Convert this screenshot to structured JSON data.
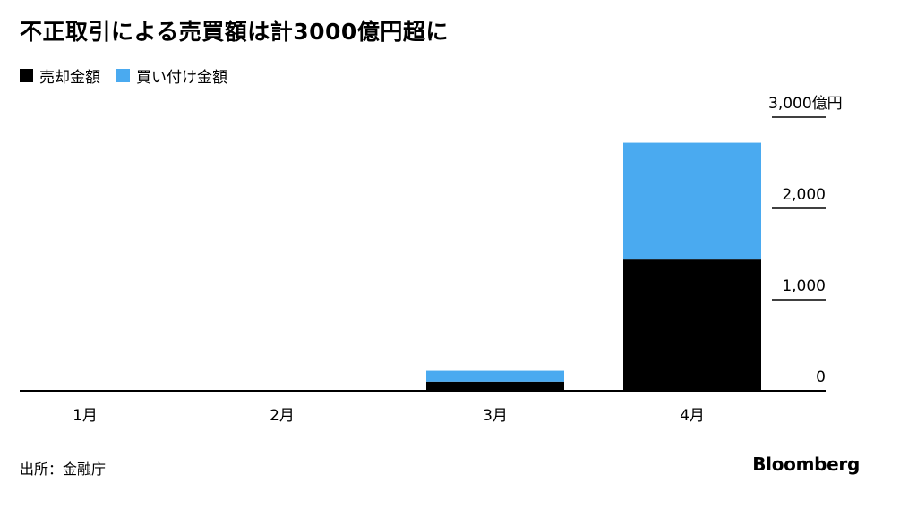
{
  "title": "不正取引による売買額は計3000億円超に",
  "legend": [
    {
      "label": "売却金額",
      "color": "#000000"
    },
    {
      "label": "買い付け金額",
      "color": "#4aaaf0"
    }
  ],
  "source": "出所：金融庁",
  "brand": "Bloomberg",
  "chart_data": {
    "type": "bar",
    "stacked": true,
    "categories": [
      "1月",
      "2月",
      "3月",
      "4月"
    ],
    "series": [
      {
        "name": "売却金額",
        "color": "#000000",
        "values": [
          0,
          0,
          100,
          1440
        ]
      },
      {
        "name": "買い付け金額",
        "color": "#4aaaf0",
        "values": [
          0,
          0,
          120,
          1280
        ]
      }
    ],
    "ylim": [
      0,
      3000
    ],
    "yticks": [
      0,
      1000,
      2000,
      3000
    ],
    "ytick_labels": [
      "0",
      "1,000",
      "2,000",
      "3,000億円"
    ],
    "yaxis_position": "right",
    "grid": false
  }
}
